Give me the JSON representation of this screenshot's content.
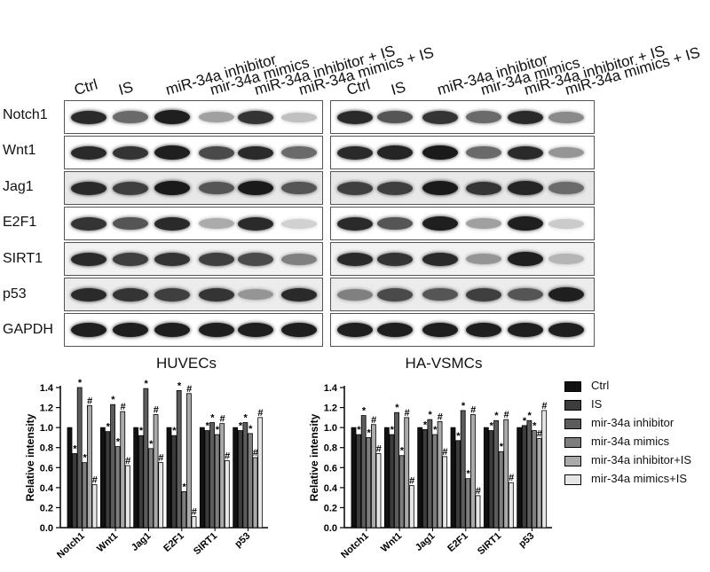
{
  "lanes": [
    "Ctrl",
    "IS",
    "miR-34a inhibitor",
    "mir-34a mimics",
    "miR-34a inhibitor + IS",
    "miR-34a mimics + IS"
  ],
  "blot_rows": [
    "Notch1",
    "Wnt1",
    "Jag1",
    "E2F1",
    "SIRT1",
    "p53",
    "GAPDH"
  ],
  "colors": {
    "series": [
      "#111111",
      "#3c3c3c",
      "#5c5c5c",
      "#7e7e7e",
      "#aaaaaa",
      "#e6e6e6"
    ]
  },
  "legend": [
    "Ctrl",
    "IS",
    "mir-34a inhibitor",
    "mir-34a mimics",
    "mir-34a inhibitor+IS",
    "mir-34a mimics+IS"
  ],
  "chart_data": [
    {
      "type": "bar",
      "title": "HUVECs",
      "ylabel": "Relative intensity",
      "ylim": [
        0,
        1.4
      ],
      "yticks": [
        "0.0",
        "0.2",
        "0.4",
        "0.6",
        "0.8",
        "1.0",
        "1.2",
        "1.4"
      ],
      "categories": [
        "Notch1",
        "Wnt1",
        "Jag1",
        "E2F1",
        "SIRT1",
        "p53"
      ],
      "series": [
        {
          "name": "Ctrl",
          "values": [
            1.0,
            1.0,
            1.0,
            1.0,
            1.0,
            1.0
          ]
        },
        {
          "name": "IS",
          "values": [
            0.74,
            0.96,
            0.92,
            0.92,
            0.97,
            0.97
          ]
        },
        {
          "name": "mir-34a inhibitor",
          "values": [
            1.4,
            1.23,
            1.39,
            1.37,
            1.05,
            1.05
          ]
        },
        {
          "name": "mir-34a mimics",
          "values": [
            0.65,
            0.81,
            0.79,
            0.36,
            0.93,
            0.94
          ]
        },
        {
          "name": "mir-34a inhibitor+IS",
          "values": [
            1.22,
            1.16,
            1.13,
            1.34,
            1.04,
            0.7
          ]
        },
        {
          "name": "mir-34a mimics+IS",
          "values": [
            0.43,
            0.62,
            0.65,
            0.11,
            0.67,
            1.1
          ]
        }
      ],
      "annotations": [
        [
          "",
          "*",
          "*",
          "*",
          "#",
          "#"
        ],
        [
          "",
          "*",
          "*",
          "*",
          "#",
          "#"
        ],
        [
          "",
          "*",
          "*",
          "*",
          "#",
          "#"
        ],
        [
          "",
          "*",
          "*",
          "*",
          "#",
          "#"
        ],
        [
          "",
          "*",
          "*",
          "*",
          "#",
          "#"
        ],
        [
          "",
          "*",
          "*",
          "*",
          "#",
          "#"
        ]
      ]
    },
    {
      "type": "bar",
      "title": "HA-VSMCs",
      "ylabel": "Relative intensity",
      "ylim": [
        0,
        1.4
      ],
      "yticks": [
        "0.0",
        "0.2",
        "0.4",
        "0.6",
        "0.8",
        "1.0",
        "1.2",
        "1.4"
      ],
      "categories": [
        "Notch1",
        "Wnt1",
        "Jag1",
        "E2F1",
        "SIRT1",
        "p53"
      ],
      "series": [
        {
          "name": "Ctrl",
          "values": [
            1.0,
            1.0,
            1.0,
            1.0,
            1.0,
            1.0
          ]
        },
        {
          "name": "IS",
          "values": [
            0.93,
            0.93,
            0.98,
            0.87,
            0.97,
            1.02
          ]
        },
        {
          "name": "mir-34a inhibitor",
          "values": [
            1.12,
            1.15,
            1.08,
            1.17,
            1.07,
            1.07
          ]
        },
        {
          "name": "mir-34a mimics",
          "values": [
            0.9,
            0.72,
            0.93,
            0.49,
            0.76,
            0.97
          ]
        },
        {
          "name": "mir-34a inhibitor+IS",
          "values": [
            1.03,
            1.1,
            1.06,
            1.13,
            1.08,
            0.89
          ]
        },
        {
          "name": "mir-34a mimics+IS",
          "values": [
            0.74,
            0.42,
            0.71,
            0.32,
            0.45,
            1.17
          ]
        }
      ],
      "annotations": [
        [
          "",
          "*",
          "*",
          "*",
          "#",
          "#"
        ],
        [
          "",
          "*",
          "*",
          "*",
          "#",
          "#"
        ],
        [
          "",
          "*",
          "*",
          "*",
          "#",
          "#"
        ],
        [
          "",
          "*",
          "*",
          "*",
          "#",
          "#"
        ],
        [
          "",
          "*",
          "*",
          "*",
          "#",
          "#"
        ],
        [
          "",
          "*",
          "*",
          "*",
          "#",
          "#"
        ]
      ]
    }
  ]
}
